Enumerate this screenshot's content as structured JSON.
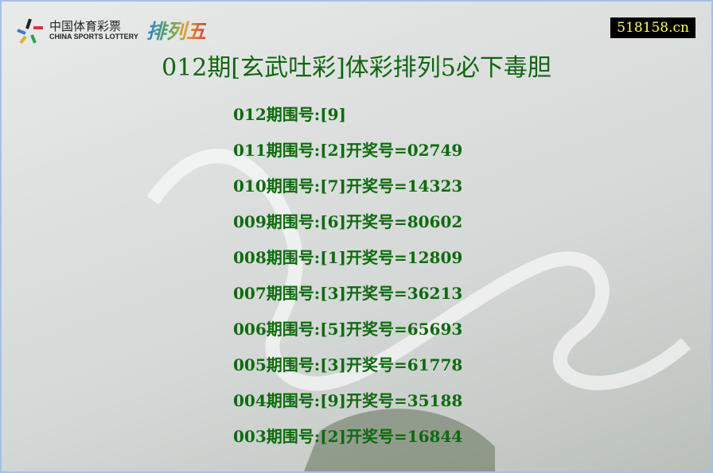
{
  "logo": {
    "cn": "中国体育彩票",
    "en": "CHINA SPORTS LOTTERY",
    "game": "排列五"
  },
  "site": "518158.cn",
  "title": "012期[玄武吐彩]体彩排列5必下毒胆",
  "rows": [
    "012期围号:[9]",
    "011期围号:[2]开奖号=02749",
    "010期围号:[7]开奖号=14323",
    "009期围号:[6]开奖号=80602",
    "008期围号:[1]开奖号=12809",
    "007期围号:[3]开奖号=36213",
    "006期围号:[5]开奖号=65693",
    "005期围号:[3]开奖号=61778",
    "004期围号:[9]开奖号=35188",
    "003期围号:[2]开奖号=16844"
  ]
}
